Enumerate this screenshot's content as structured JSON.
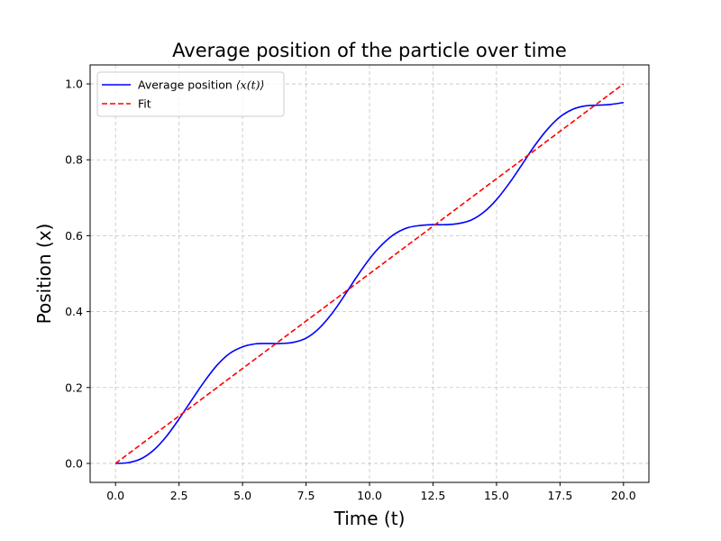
{
  "chart_data": {
    "type": "line",
    "title": "Average position of the particle over time",
    "xlabel": "Time (t)",
    "ylabel": "Position (x)",
    "xlim": [
      -1.0,
      21.0
    ],
    "ylim": [
      -0.05,
      1.05
    ],
    "x_ticks": [
      0.0,
      2.5,
      5.0,
      7.5,
      10.0,
      12.5,
      15.0,
      17.5,
      20.0
    ],
    "x_tick_labels": [
      "0.0",
      "2.5",
      "5.0",
      "7.5",
      "10.0",
      "12.5",
      "15.0",
      "17.5",
      "20.0"
    ],
    "y_ticks": [
      0.0,
      0.2,
      0.4,
      0.6,
      0.8,
      1.0
    ],
    "y_tick_labels": [
      "0.0",
      "0.2",
      "0.4",
      "0.6",
      "0.8",
      "1.0"
    ],
    "grid": true,
    "legend_position": "top-left",
    "series": [
      {
        "name_prefix": "Average position ",
        "name_math": "⟨x(t)⟩",
        "style": "solid",
        "color": "#0000ff",
        "x": [
          0.0,
          0.5,
          1.0,
          1.5,
          2.0,
          2.5,
          3.0,
          3.5,
          4.0,
          4.5,
          5.0,
          5.5,
          6.0,
          6.5,
          7.0,
          7.5,
          8.0,
          8.5,
          9.0,
          9.5,
          10.0,
          10.5,
          11.0,
          11.5,
          12.0,
          12.5,
          13.0,
          13.5,
          14.0,
          14.5,
          15.0,
          15.5,
          16.0,
          16.5,
          17.0,
          17.5,
          18.0,
          18.5,
          19.0,
          19.5,
          20.0
        ],
        "y": [
          0.0,
          0.002,
          0.012,
          0.035,
          0.071,
          0.117,
          0.167,
          0.216,
          0.259,
          0.29,
          0.307,
          0.315,
          0.316,
          0.316,
          0.319,
          0.33,
          0.355,
          0.393,
          0.441,
          0.492,
          0.539,
          0.577,
          0.605,
          0.621,
          0.627,
          0.629,
          0.629,
          0.632,
          0.641,
          0.662,
          0.695,
          0.738,
          0.787,
          0.837,
          0.88,
          0.913,
          0.933,
          0.942,
          0.944,
          0.946,
          0.951
        ]
      },
      {
        "name": "Fit",
        "style": "dashed",
        "color": "#ff0000",
        "x": [
          0.0,
          20.0
        ],
        "y": [
          0.0,
          1.0
        ]
      }
    ]
  }
}
